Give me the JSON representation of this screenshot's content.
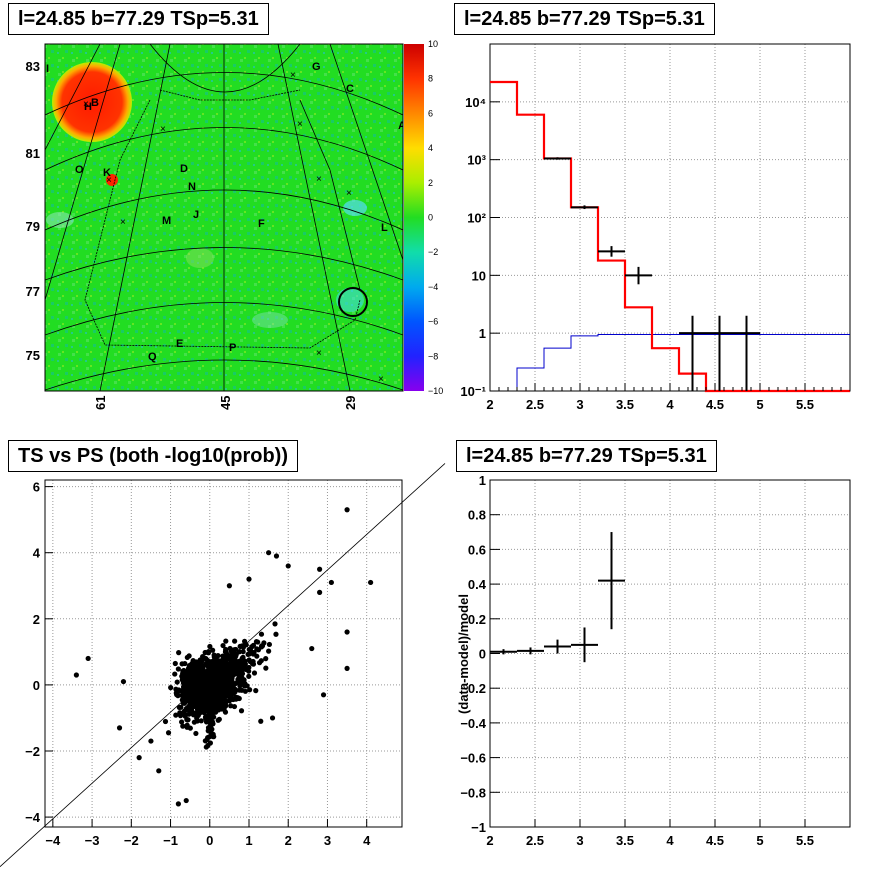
{
  "panels": {
    "top_left_title": "l=24.85 b=77.29 TSp=5.31",
    "top_right_title": "l=24.85 b=77.29 TSp=5.31",
    "bottom_left_title": "TS vs PS (both -log10(prob))",
    "bottom_right_title": "l=24.85 b=77.29 TSp=5.31"
  },
  "chart_data": [
    {
      "type": "heatmap",
      "title": "l=24.85 b=77.29 TSp=5.31",
      "y_ticks": [
        "83",
        "81",
        "79",
        "77",
        "75"
      ],
      "x_ticks": [
        "61",
        "45",
        "29"
      ],
      "colorbar_ticks": [
        "10",
        "8",
        "6",
        "4",
        "2",
        "0",
        "−2",
        "−4",
        "−6",
        "−8",
        "−10"
      ],
      "zlim": [
        -10,
        10
      ],
      "source_labels": [
        "G",
        "C",
        "A",
        "B",
        "H",
        "O",
        "K",
        "D",
        "N",
        "M",
        "J",
        "F",
        "L",
        "Q",
        "E",
        "P",
        "I"
      ],
      "colors": {
        "background": "#22dd22",
        "hotspot": "#ff2a00",
        "hotspot_edge": "#ffff00",
        "cool": "#20d0e0"
      }
    },
    {
      "type": "line",
      "title": "l=24.85 b=77.29 TSp=5.31",
      "log_y": true,
      "xlim": [
        2,
        6
      ],
      "ylim": [
        0.1,
        100000
      ],
      "x_ticks": [
        "2",
        "2.5",
        "3",
        "3.5",
        "4",
        "4.5",
        "5",
        "5.5"
      ],
      "y_ticks": [
        "10⁻¹",
        "1",
        "10",
        "10²",
        "10³",
        "10⁴"
      ],
      "model_edges": [
        2.0,
        2.3,
        2.6,
        2.9,
        3.2,
        3.5,
        3.8,
        4.1,
        4.4,
        6.0
      ],
      "model_values": [
        22000,
        6000,
        1050,
        150,
        18,
        2.8,
        0.55,
        0.2,
        0.1
      ],
      "background_edges": [
        2.3,
        2.6,
        2.9,
        3.2,
        6.0
      ],
      "background_values": [
        0.25,
        0.55,
        0.9,
        0.95
      ],
      "data_points": [
        {
          "x": 2.75,
          "y": 1050,
          "xerr": 0.15,
          "ylo": 1000,
          "yhi": 1100
        },
        {
          "x": 3.05,
          "y": 150,
          "xerr": 0.15,
          "ylo": 140,
          "yhi": 162
        },
        {
          "x": 3.35,
          "y": 26,
          "xerr": 0.15,
          "ylo": 21,
          "yhi": 32
        },
        {
          "x": 3.65,
          "y": 10,
          "xerr": 0.15,
          "ylo": 7,
          "yhi": 14
        },
        {
          "x": 4.25,
          "y": 1,
          "xerr": 0.15,
          "ylo": 0.1,
          "yhi": 2
        },
        {
          "x": 4.55,
          "y": 1,
          "xerr": 0.15,
          "ylo": 0.1,
          "yhi": 2
        },
        {
          "x": 4.85,
          "y": 1,
          "xerr": 0.15,
          "ylo": 0.1,
          "yhi": 2
        }
      ],
      "colors": {
        "model": "#ff0000",
        "background": "#0000cc",
        "data": "#000000"
      }
    },
    {
      "type": "scatter",
      "title": "TS vs PS (both -log10(prob))",
      "xlim": [
        -4.2,
        4.9
      ],
      "ylim": [
        -4.3,
        6.2
      ],
      "x_ticks": [
        "−4",
        "−3",
        "−2",
        "−1",
        "0",
        "1",
        "2",
        "3",
        "4"
      ],
      "y_ticks": [
        "−4",
        "−2",
        "0",
        "2",
        "4",
        "6"
      ],
      "reference_line": "y = x",
      "outliers": [
        [
          3.5,
          5.3
        ],
        [
          4.1,
          3.1
        ],
        [
          3.1,
          3.1
        ],
        [
          2.8,
          3.5
        ],
        [
          2.8,
          2.8
        ],
        [
          1.5,
          4.0
        ],
        [
          1.7,
          3.9
        ],
        [
          2.0,
          3.6
        ],
        [
          3.5,
          1.6
        ],
        [
          3.5,
          0.5
        ],
        [
          -3.1,
          0.8
        ],
        [
          -3.4,
          0.3
        ],
        [
          -2.2,
          0.1
        ],
        [
          -2.3,
          -1.3
        ],
        [
          -1.3,
          -2.6
        ],
        [
          -0.8,
          -3.6
        ],
        [
          -0.6,
          -3.5
        ],
        [
          -1.8,
          -2.2
        ],
        [
          2.6,
          1.1
        ],
        [
          1.3,
          -1.1
        ],
        [
          1.6,
          -1.0
        ],
        [
          -1.5,
          -1.7
        ],
        [
          2.9,
          -0.3
        ],
        [
          0.5,
          3.0
        ],
        [
          1.0,
          3.2
        ]
      ],
      "colors": {
        "points": "#000000"
      }
    },
    {
      "type": "line",
      "title": "l=24.85 b=77.29 TSp=5.31",
      "ylabel": "(data-model)/model",
      "xlim": [
        2,
        6
      ],
      "ylim": [
        -1,
        1
      ],
      "x_ticks": [
        "2",
        "2.5",
        "3",
        "3.5",
        "4",
        "4.5",
        "5",
        "5.5"
      ],
      "y_ticks": [
        "−1",
        "−0.8",
        "−0.6",
        "−0.4",
        "−0.2",
        "0",
        "0.2",
        "0.4",
        "0.6",
        "0.8",
        "1"
      ],
      "data_points": [
        {
          "x": 2.15,
          "y": 0.01,
          "xerr": 0.15,
          "yerr": 0.015
        },
        {
          "x": 2.45,
          "y": 0.015,
          "xerr": 0.15,
          "yerr": 0.02
        },
        {
          "x": 2.75,
          "y": 0.04,
          "xerr": 0.15,
          "yerr": 0.04
        },
        {
          "x": 3.05,
          "y": 0.05,
          "xerr": 0.15,
          "yerr": 0.1
        },
        {
          "x": 3.35,
          "y": 0.42,
          "xerr": 0.15,
          "yerr": 0.28
        }
      ],
      "colors": {
        "data": "#000000"
      }
    }
  ]
}
